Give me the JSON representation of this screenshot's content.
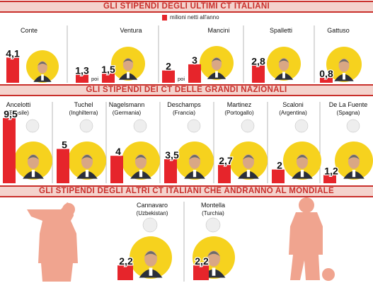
{
  "chart_data": [
    {
      "type": "bar",
      "title": "GLI STIPENDI DEGLI ULTIMI CT ITALIANI",
      "legend": "milioni netti all'anno",
      "categories": [
        "Conte",
        "Ventura",
        "Mancini",
        "Spalletti",
        "Gattuso"
      ],
      "values": [
        4.1,
        1.3,
        2,
        2.8,
        0.8
      ],
      "labels": [
        "4,1",
        "1,3",
        "2",
        "2,8",
        "0,8"
      ],
      "secondary": [
        {
          "category": "Ventura",
          "value": 1.5,
          "label": "1,5",
          "note": "poi"
        },
        {
          "category": "Mancini",
          "value": 3,
          "label": "3",
          "note": "poi"
        }
      ],
      "color": "#e6252b"
    },
    {
      "type": "bar",
      "title": "GLI STIPENDI DEI CT DELLE GRANDI NAZIONALI",
      "categories": [
        "Ancelotti",
        "Tuchel",
        "Nagelsmann",
        "Deschamps",
        "Martinez",
        "Scaloni",
        "De La Fuente"
      ],
      "subtitles": [
        "(Brasile)",
        "(Inghilterra)",
        "(Germania)",
        "(Francia)",
        "(Portogallo)",
        "(Argentina)",
        "(Spagna)"
      ],
      "values": [
        9.5,
        5,
        4,
        3.5,
        2.7,
        2,
        1.2
      ],
      "labels": [
        "9,5",
        "5",
        "4",
        "3,5",
        "2,7",
        "2",
        "1,2"
      ],
      "color": "#e6252b"
    },
    {
      "type": "bar",
      "title": "GLI STIPENDI DEGLI ALTRI CT ITALIANI CHE ANDRANNO AL MONDIALE",
      "categories": [
        "Cannavaro",
        "Montella"
      ],
      "subtitles": [
        "(Uzbekistan)",
        "(Turchia)"
      ],
      "values": [
        2.2,
        2.2
      ],
      "labels": [
        "2,2",
        "2,2"
      ],
      "color": "#e6252b"
    }
  ],
  "colors": {
    "accent": "#c9302c",
    "bar": "#e6252b",
    "halo": "#f6d21e",
    "band": "#f4d3cd",
    "silhouette": "#f0a48f"
  },
  "flag_icons": [
    "brazil-flag-icon",
    "england-flag-icon",
    "germany-flag-icon",
    "france-flag-icon",
    "portugal-flag-icon",
    "argentina-flag-icon",
    "spain-flag-icon",
    "uzbekistan-flag-icon",
    "turkey-flag-icon"
  ]
}
